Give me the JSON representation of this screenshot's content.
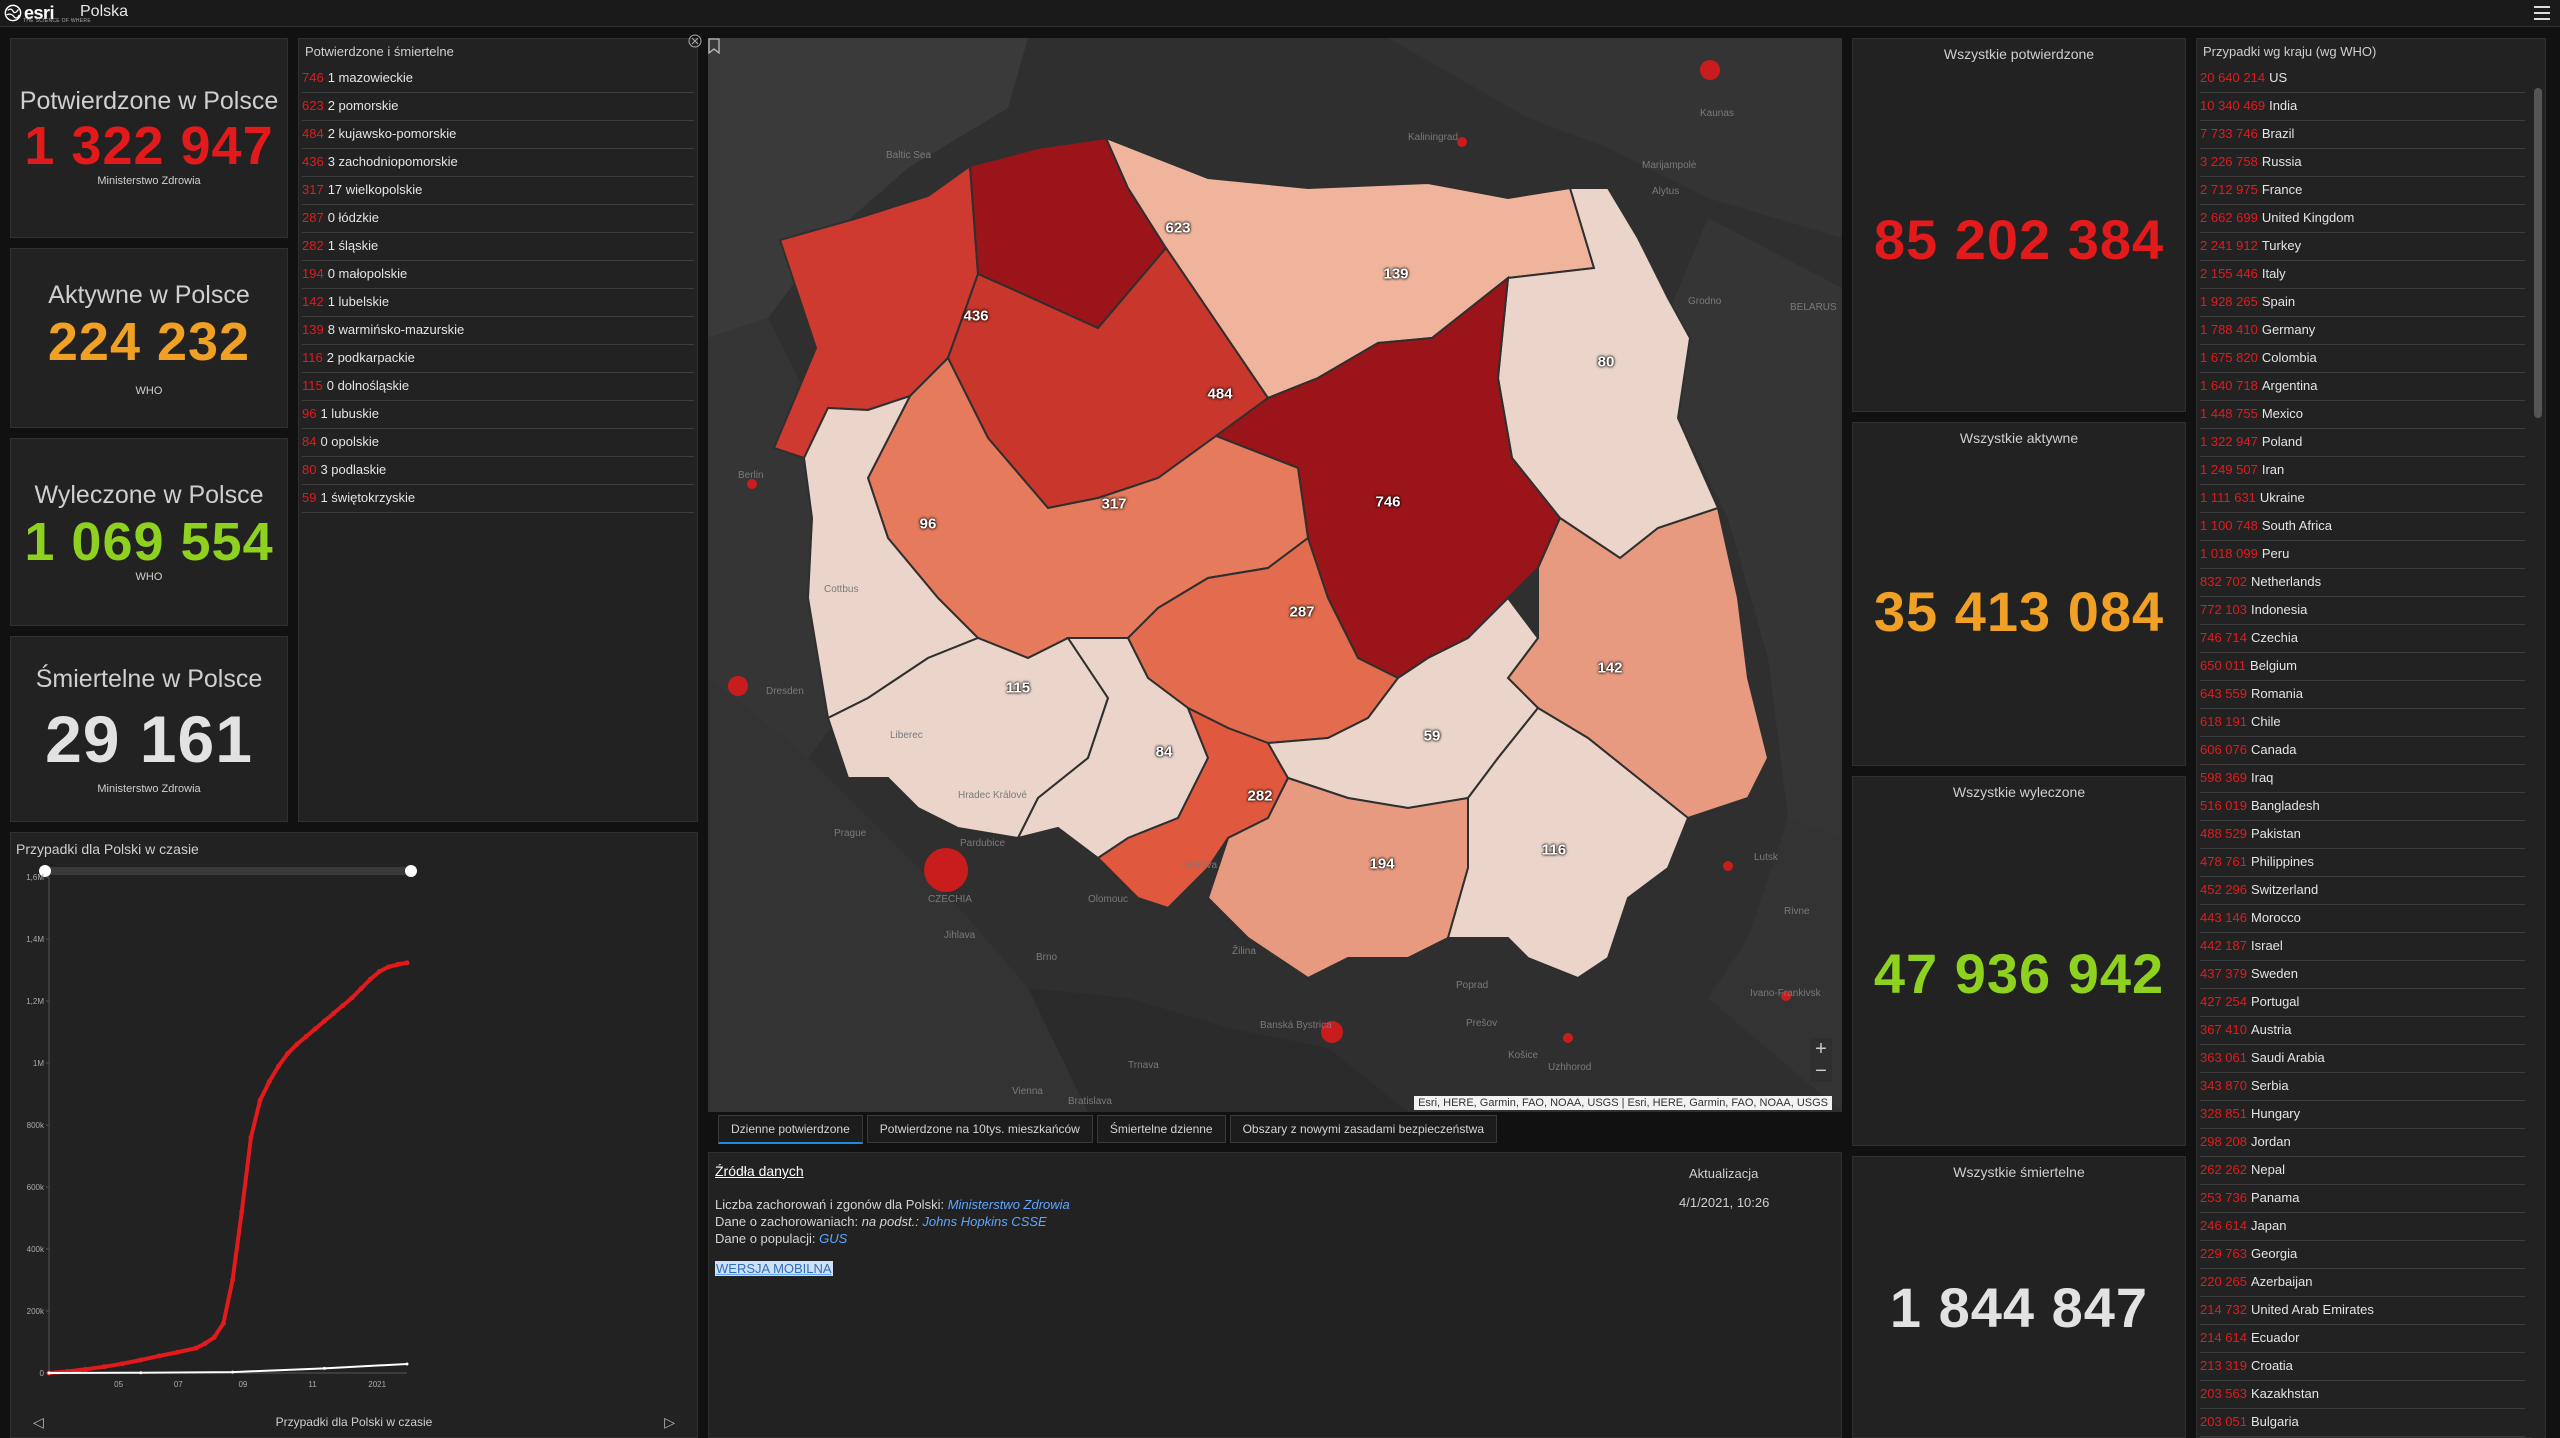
{
  "header": {
    "logo": "esri",
    "logo_tagline": "THE SCIENCE OF WHERE",
    "title": "Polska"
  },
  "stats_pl": [
    {
      "title": "Potwierdzone w Polsce",
      "value": "1 322 947",
      "source": "Ministerstwo Zdrowia",
      "color": "#e31a1c"
    },
    {
      "title": "Aktywne w Polsce",
      "value": "224 232",
      "source": "WHO",
      "color": "#f0a024"
    },
    {
      "title": "Wyleczone w Polsce",
      "value": "1 069 554",
      "source": "WHO",
      "color": "#8fd11f"
    },
    {
      "title": "Śmiertelne w Polsce",
      "value": "29 161",
      "source": "Ministerstwo Zdrowia",
      "color": "#e2e2e2"
    }
  ],
  "regions": {
    "title": "Potwierdzone i śmiertelne",
    "items": [
      {
        "conf": "746",
        "rest": "1 mazowieckie"
      },
      {
        "conf": "623",
        "rest": "2 pomorskie"
      },
      {
        "conf": "484",
        "rest": "2 kujawsko-pomorskie"
      },
      {
        "conf": "436",
        "rest": "3 zachodniopomorskie"
      },
      {
        "conf": "317",
        "rest": "17 wielkopolskie"
      },
      {
        "conf": "287",
        "rest": "0 łódzkie"
      },
      {
        "conf": "282",
        "rest": "1 śląskie"
      },
      {
        "conf": "194",
        "rest": "0 małopolskie"
      },
      {
        "conf": "142",
        "rest": "1 lubelskie"
      },
      {
        "conf": "139",
        "rest": "8 warmińsko-mazurskie"
      },
      {
        "conf": "116",
        "rest": "2 podkarpackie"
      },
      {
        "conf": "115",
        "rest": "0 dolnośląskie"
      },
      {
        "conf": "96",
        "rest": "1 lubuskie"
      },
      {
        "conf": "84",
        "rest": "0 opolskie"
      },
      {
        "conf": "80",
        "rest": "3 podlaskie"
      },
      {
        "conf": "59",
        "rest": "1 świętokrzyskie"
      }
    ]
  },
  "map": {
    "attribution": "Esri, HERE, Garmin, FAO, NOAA, USGS | Esri, HERE, Garmin, FAO, NOAA, USGS",
    "zoom_in": "+",
    "zoom_out": "−",
    "places": [
      "Kaliningrad",
      "Baltic Sea",
      "Kaunas",
      "Marijampolė",
      "Alytus",
      "Grodno",
      "Berlin",
      "Cottbus",
      "Dresden",
      "Liberec",
      "Prague",
      "CZECHIA",
      "Pardubice",
      "Olomouc",
      "Ostrava",
      "Brno",
      "Vienna",
      "Bratislava",
      "Žilina",
      "Poprad",
      "Prešov",
      "Košice",
      "Uzhhorod",
      "Ivano-Frankivsk",
      "Lutsk",
      "Rivne",
      "BELARUS",
      "Hradec Králové",
      "Jihlava",
      "Trnava",
      "Banská Bystrica"
    ]
  },
  "tabs": [
    "Dzienne potwierdzone",
    "Potwierdzone na 10tys. mieszkańców",
    "Śmiertelne dzienne",
    "Obszary z nowymi zasadami bezpieczeństwa"
  ],
  "info": {
    "sources_title": "Źródła danych",
    "line1_text": "Liczba zachorowań i zgonów dla Polski: ",
    "line1_link": "Ministerstwo Zdrowia",
    "line2_text": "Dane o zachorowaniach: ",
    "line2_em": "na podst.: ",
    "line2_link": "Johns Hopkins CSSE",
    "line3_text": "Dane o populacji: ",
    "line3_link": "GUS",
    "update_title": "Aktualizacja",
    "update_value": "4/1/2021, 10:26",
    "mobile_link": "WERSJA MOBILNA"
  },
  "chart": {
    "title": "Przypadki dla Polski w czasie",
    "footer": "Przypadki dla Polski w czasie",
    "chart_data": {
      "type": "line",
      "title": "Przypadki dla Polski w czasie",
      "xlabel": "",
      "ylabel": "",
      "x_ticks": [
        "05",
        "07",
        "09",
        "11",
        "2021"
      ],
      "y_ticks": [
        "0",
        "200k",
        "400k",
        "600k",
        "800k",
        "1M",
        "1,2M",
        "1,4M",
        "1,6M"
      ],
      "ylim": [
        0,
        1600000
      ],
      "series": [
        {
          "color": "#e31a1c",
          "x": [
            0,
            20,
            40,
            60,
            80,
            100,
            120,
            140,
            160,
            170,
            180,
            190,
            200,
            210,
            220,
            230,
            240,
            250,
            260,
            270,
            280,
            290,
            300,
            310,
            320,
            330,
            340,
            350,
            360,
            370,
            380,
            390
          ],
          "values": [
            0,
            5000,
            12000,
            20000,
            30000,
            42000,
            55000,
            67000,
            80000,
            95000,
            115000,
            160000,
            300000,
            520000,
            760000,
            880000,
            940000,
            990000,
            1030000,
            1060000,
            1085000,
            1110000,
            1135000,
            1160000,
            1185000,
            1210000,
            1240000,
            1270000,
            1295000,
            1310000,
            1318000,
            1322947
          ]
        },
        {
          "color": "#ffffff",
          "x": [
            0,
            100,
            200,
            300,
            390
          ],
          "values": [
            0,
            1000,
            3000,
            15000,
            29161
          ]
        }
      ]
    }
  },
  "totals": [
    {
      "title": "Wszystkie potwierdzone",
      "value": "85 202 384",
      "color": "#e31a1c"
    },
    {
      "title": "Wszystkie aktywne",
      "value": "35 413 084",
      "color": "#f0a024"
    },
    {
      "title": "Wszystkie wyleczone",
      "value": "47 936 942",
      "color": "#8fd11f"
    },
    {
      "title": "Wszystkie śmiertelne",
      "value": "1 844 847",
      "color": "#e2e2e2"
    }
  ],
  "countries": {
    "title": "Przypadki wg kraju (wg WHO)",
    "items": [
      {
        "num": "20 640 214",
        "name": "US"
      },
      {
        "num": "10 340 469",
        "name": "India"
      },
      {
        "num": "7 733 746",
        "name": "Brazil"
      },
      {
        "num": "3 226 758",
        "name": "Russia"
      },
      {
        "num": "2 712 975",
        "name": "France"
      },
      {
        "num": "2 662 699",
        "name": "United Kingdom"
      },
      {
        "num": "2 241 912",
        "name": "Turkey"
      },
      {
        "num": "2 155 446",
        "name": "Italy"
      },
      {
        "num": "1 928 265",
        "name": "Spain"
      },
      {
        "num": "1 788 410",
        "name": "Germany"
      },
      {
        "num": "1 675 820",
        "name": "Colombia"
      },
      {
        "num": "1 640 718",
        "name": "Argentina"
      },
      {
        "num": "1 448 755",
        "name": "Mexico"
      },
      {
        "num": "1 322 947",
        "name": "Poland"
      },
      {
        "num": "1 249 507",
        "name": "Iran"
      },
      {
        "num": "1 111 631",
        "name": "Ukraine"
      },
      {
        "num": "1 100 748",
        "name": "South Africa"
      },
      {
        "num": "1 018 099",
        "name": "Peru"
      },
      {
        "num": "832 702",
        "name": "Netherlands"
      },
      {
        "num": "772 103",
        "name": "Indonesia"
      },
      {
        "num": "746 714",
        "name": "Czechia"
      },
      {
        "num": "650 011",
        "name": "Belgium"
      },
      {
        "num": "643 559",
        "name": "Romania"
      },
      {
        "num": "618 191",
        "name": "Chile"
      },
      {
        "num": "606 076",
        "name": "Canada"
      },
      {
        "num": "598 369",
        "name": "Iraq"
      },
      {
        "num": "516 019",
        "name": "Bangladesh"
      },
      {
        "num": "488 529",
        "name": "Pakistan"
      },
      {
        "num": "478 761",
        "name": "Philippines"
      },
      {
        "num": "452 296",
        "name": "Switzerland"
      },
      {
        "num": "443 146",
        "name": "Morocco"
      },
      {
        "num": "442 187",
        "name": "Israel"
      },
      {
        "num": "437 379",
        "name": "Sweden"
      },
      {
        "num": "427 254",
        "name": "Portugal"
      },
      {
        "num": "367 410",
        "name": "Austria"
      },
      {
        "num": "363 061",
        "name": "Saudi Arabia"
      },
      {
        "num": "343 870",
        "name": "Serbia"
      },
      {
        "num": "328 851",
        "name": "Hungary"
      },
      {
        "num": "298 208",
        "name": "Jordan"
      },
      {
        "num": "262 262",
        "name": "Nepal"
      },
      {
        "num": "253 736",
        "name": "Panama"
      },
      {
        "num": "246 614",
        "name": "Japan"
      },
      {
        "num": "229 763",
        "name": "Georgia"
      },
      {
        "num": "220 265",
        "name": "Azerbaijan"
      },
      {
        "num": "214 732",
        "name": "United Arab Emirates"
      },
      {
        "num": "214 614",
        "name": "Ecuador"
      },
      {
        "num": "213 319",
        "name": "Croatia"
      },
      {
        "num": "203 563",
        "name": "Kazakhstan"
      },
      {
        "num": "203 051",
        "name": "Bulgaria"
      }
    ]
  }
}
